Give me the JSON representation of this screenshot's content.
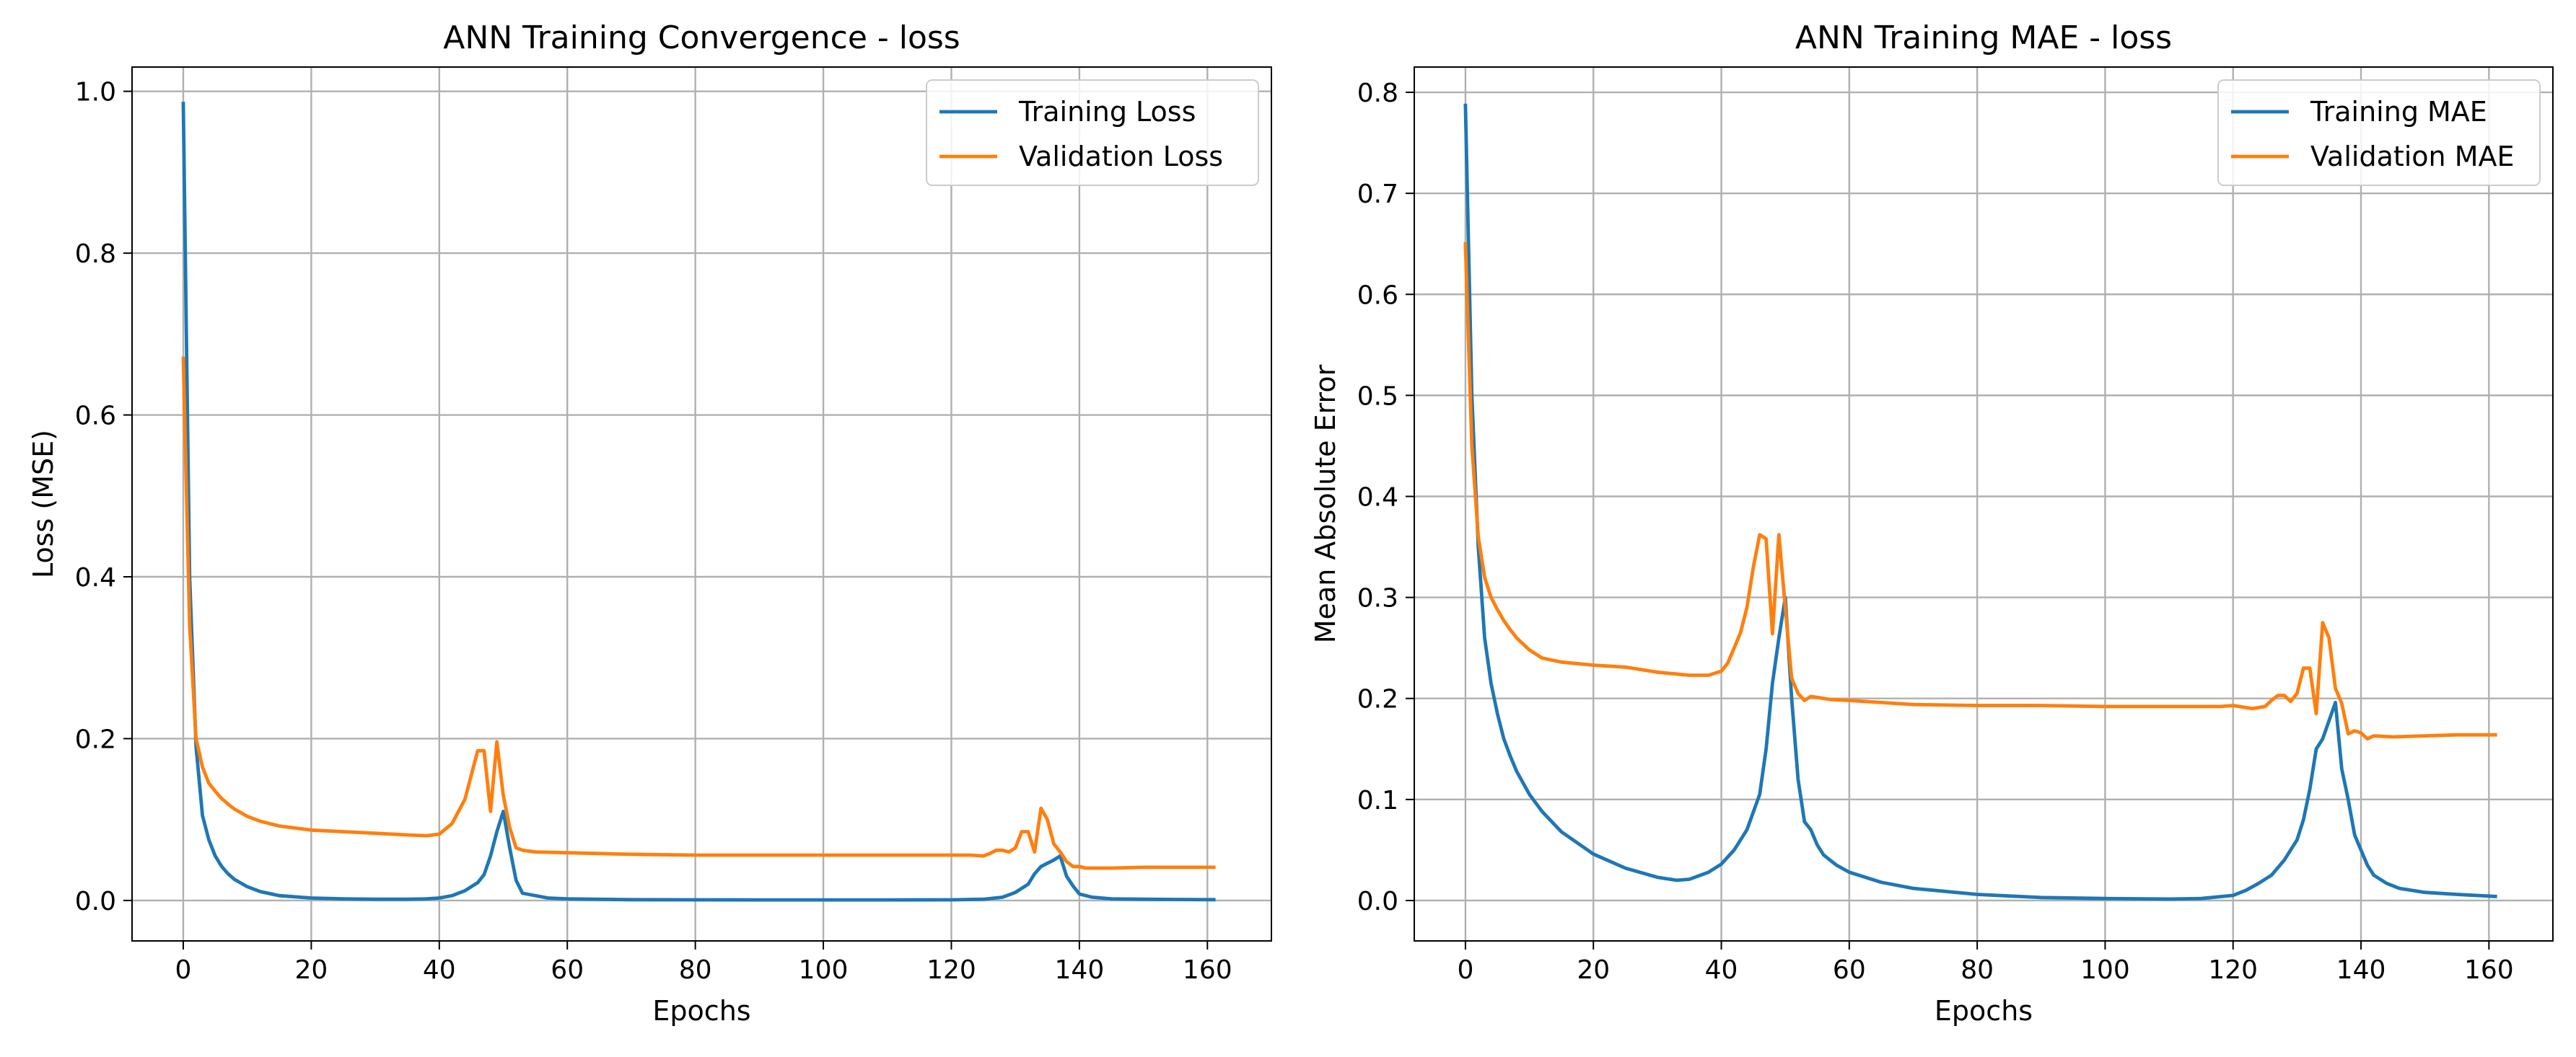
{
  "chart_data": [
    {
      "type": "line",
      "title": "ANN Training Convergence - loss",
      "xlabel": "Epochs",
      "ylabel": "Loss (MSE)",
      "xlim": [
        -8,
        170
      ],
      "ylim": [
        -0.05,
        1.03
      ],
      "xticks": [
        0,
        20,
        40,
        60,
        80,
        100,
        120,
        140,
        160
      ],
      "yticks": [
        0.0,
        0.2,
        0.4,
        0.6,
        0.8,
        1.0
      ],
      "ytick_format": "1",
      "grid": true,
      "legend": "top-right",
      "series": [
        {
          "name": "Training Loss",
          "color": "#1f77b4",
          "points": [
            [
              0,
              0.985
            ],
            [
              1,
              0.4
            ],
            [
              2,
              0.19
            ],
            [
              3,
              0.105
            ],
            [
              4,
              0.075
            ],
            [
              5,
              0.055
            ],
            [
              6,
              0.042
            ],
            [
              7,
              0.033
            ],
            [
              8,
              0.026
            ],
            [
              10,
              0.017
            ],
            [
              12,
              0.011
            ],
            [
              15,
              0.006
            ],
            [
              20,
              0.003
            ],
            [
              25,
              0.002
            ],
            [
              30,
              0.0015
            ],
            [
              35,
              0.0015
            ],
            [
              38,
              0.002
            ],
            [
              40,
              0.003
            ],
            [
              42,
              0.006
            ],
            [
              44,
              0.012
            ],
            [
              46,
              0.022
            ],
            [
              47,
              0.032
            ],
            [
              48,
              0.055
            ],
            [
              49,
              0.085
            ],
            [
              50,
              0.11
            ],
            [
              51,
              0.065
            ],
            [
              52,
              0.025
            ],
            [
              53,
              0.009
            ],
            [
              55,
              0.006
            ],
            [
              57,
              0.003
            ],
            [
              60,
              0.002
            ],
            [
              70,
              0.001
            ],
            [
              80,
              0.0008
            ],
            [
              90,
              0.0007
            ],
            [
              100,
              0.0007
            ],
            [
              110,
              0.0007
            ],
            [
              120,
              0.0008
            ],
            [
              125,
              0.0015
            ],
            [
              128,
              0.004
            ],
            [
              130,
              0.01
            ],
            [
              132,
              0.02
            ],
            [
              133,
              0.033
            ],
            [
              134,
              0.042
            ],
            [
              136,
              0.05
            ],
            [
              137,
              0.055
            ],
            [
              138,
              0.03
            ],
            [
              139,
              0.018
            ],
            [
              140,
              0.008
            ],
            [
              142,
              0.004
            ],
            [
              145,
              0.002
            ],
            [
              150,
              0.0015
            ],
            [
              155,
              0.0012
            ],
            [
              161,
              0.001
            ]
          ]
        },
        {
          "name": "Validation Loss",
          "color": "#ff7f0e",
          "points": [
            [
              0,
              0.67
            ],
            [
              1,
              0.34
            ],
            [
              2,
              0.2
            ],
            [
              3,
              0.165
            ],
            [
              4,
              0.145
            ],
            [
              5,
              0.135
            ],
            [
              6,
              0.126
            ],
            [
              7,
              0.119
            ],
            [
              8,
              0.113
            ],
            [
              10,
              0.104
            ],
            [
              12,
              0.098
            ],
            [
              15,
              0.092
            ],
            [
              20,
              0.087
            ],
            [
              25,
              0.085
            ],
            [
              30,
              0.083
            ],
            [
              35,
              0.081
            ],
            [
              38,
              0.08
            ],
            [
              40,
              0.082
            ],
            [
              42,
              0.095
            ],
            [
              44,
              0.125
            ],
            [
              45,
              0.155
            ],
            [
              46,
              0.185
            ],
            [
              47,
              0.185
            ],
            [
              48,
              0.11
            ],
            [
              49,
              0.196
            ],
            [
              50,
              0.13
            ],
            [
              51,
              0.09
            ],
            [
              52,
              0.065
            ],
            [
              53,
              0.062
            ],
            [
              55,
              0.06
            ],
            [
              60,
              0.059
            ],
            [
              70,
              0.057
            ],
            [
              80,
              0.056
            ],
            [
              90,
              0.056
            ],
            [
              100,
              0.056
            ],
            [
              110,
              0.056
            ],
            [
              120,
              0.056
            ],
            [
              123,
              0.056
            ],
            [
              125,
              0.055
            ],
            [
              126,
              0.058
            ],
            [
              127,
              0.062
            ],
            [
              128,
              0.062
            ],
            [
              129,
              0.06
            ],
            [
              130,
              0.065
            ],
            [
              131,
              0.085
            ],
            [
              132,
              0.085
            ],
            [
              133,
              0.06
            ],
            [
              134,
              0.114
            ],
            [
              135,
              0.1
            ],
            [
              136,
              0.07
            ],
            [
              137,
              0.06
            ],
            [
              138,
              0.048
            ],
            [
              139,
              0.042
            ],
            [
              140,
              0.042
            ],
            [
              141,
              0.04
            ],
            [
              143,
              0.04
            ],
            [
              145,
              0.04
            ],
            [
              150,
              0.041
            ],
            [
              155,
              0.041
            ],
            [
              161,
              0.041
            ]
          ]
        }
      ]
    },
    {
      "type": "line",
      "title": "ANN Training MAE - loss",
      "xlabel": "Epochs",
      "ylabel": "Mean Absolute Error",
      "xlim": [
        -8,
        170
      ],
      "ylim": [
        -0.04,
        0.825
      ],
      "xticks": [
        0,
        20,
        40,
        60,
        80,
        100,
        120,
        140,
        160
      ],
      "yticks": [
        0.0,
        0.1,
        0.2,
        0.3,
        0.4,
        0.5,
        0.6,
        0.7,
        0.8
      ],
      "ytick_format": "1",
      "grid": true,
      "legend": "top-right",
      "series": [
        {
          "name": "Training MAE",
          "color": "#1f77b4",
          "points": [
            [
              0,
              0.787
            ],
            [
              1,
              0.5
            ],
            [
              2,
              0.35
            ],
            [
              3,
              0.26
            ],
            [
              4,
              0.215
            ],
            [
              5,
              0.185
            ],
            [
              6,
              0.16
            ],
            [
              7,
              0.143
            ],
            [
              8,
              0.128
            ],
            [
              10,
              0.105
            ],
            [
              12,
              0.088
            ],
            [
              15,
              0.068
            ],
            [
              20,
              0.046
            ],
            [
              25,
              0.032
            ],
            [
              30,
              0.023
            ],
            [
              33,
              0.02
            ],
            [
              35,
              0.021
            ],
            [
              38,
              0.028
            ],
            [
              40,
              0.036
            ],
            [
              42,
              0.05
            ],
            [
              44,
              0.07
            ],
            [
              46,
              0.105
            ],
            [
              47,
              0.15
            ],
            [
              48,
              0.215
            ],
            [
              49,
              0.26
            ],
            [
              50,
              0.3
            ],
            [
              51,
              0.2
            ],
            [
              52,
              0.12
            ],
            [
              53,
              0.078
            ],
            [
              54,
              0.07
            ],
            [
              55,
              0.055
            ],
            [
              56,
              0.045
            ],
            [
              58,
              0.035
            ],
            [
              60,
              0.028
            ],
            [
              65,
              0.018
            ],
            [
              70,
              0.012
            ],
            [
              80,
              0.006
            ],
            [
              90,
              0.003
            ],
            [
              100,
              0.002
            ],
            [
              110,
              0.0015
            ],
            [
              115,
              0.002
            ],
            [
              120,
              0.005
            ],
            [
              122,
              0.01
            ],
            [
              124,
              0.017
            ],
            [
              126,
              0.025
            ],
            [
              128,
              0.04
            ],
            [
              130,
              0.06
            ],
            [
              131,
              0.08
            ],
            [
              132,
              0.11
            ],
            [
              133,
              0.15
            ],
            [
              134,
              0.16
            ],
            [
              136,
              0.196
            ],
            [
              137,
              0.13
            ],
            [
              138,
              0.1
            ],
            [
              139,
              0.065
            ],
            [
              140,
              0.05
            ],
            [
              141,
              0.035
            ],
            [
              142,
              0.025
            ],
            [
              144,
              0.017
            ],
            [
              146,
              0.012
            ],
            [
              150,
              0.008
            ],
            [
              155,
              0.006
            ],
            [
              161,
              0.004
            ]
          ]
        },
        {
          "name": "Validation MAE",
          "color": "#ff7f0e",
          "points": [
            [
              0,
              0.65
            ],
            [
              1,
              0.45
            ],
            [
              2,
              0.36
            ],
            [
              3,
              0.32
            ],
            [
              4,
              0.3
            ],
            [
              5,
              0.288
            ],
            [
              6,
              0.277
            ],
            [
              7,
              0.268
            ],
            [
              8,
              0.26
            ],
            [
              10,
              0.248
            ],
            [
              12,
              0.24
            ],
            [
              15,
              0.236
            ],
            [
              20,
              0.233
            ],
            [
              25,
              0.231
            ],
            [
              30,
              0.226
            ],
            [
              35,
              0.223
            ],
            [
              38,
              0.223
            ],
            [
              40,
              0.227
            ],
            [
              41,
              0.235
            ],
            [
              42,
              0.25
            ],
            [
              43,
              0.265
            ],
            [
              44,
              0.29
            ],
            [
              45,
              0.33
            ],
            [
              46,
              0.362
            ],
            [
              47,
              0.358
            ],
            [
              48,
              0.264
            ],
            [
              49,
              0.362
            ],
            [
              50,
              0.29
            ],
            [
              51,
              0.22
            ],
            [
              52,
              0.205
            ],
            [
              53,
              0.198
            ],
            [
              54,
              0.202
            ],
            [
              55,
              0.201
            ],
            [
              57,
              0.199
            ],
            [
              60,
              0.198
            ],
            [
              70,
              0.194
            ],
            [
              80,
              0.193
            ],
            [
              90,
              0.193
            ],
            [
              100,
              0.192
            ],
            [
              110,
              0.192
            ],
            [
              118,
              0.192
            ],
            [
              120,
              0.193
            ],
            [
              123,
              0.19
            ],
            [
              125,
              0.192
            ],
            [
              126,
              0.198
            ],
            [
              127,
              0.203
            ],
            [
              128,
              0.203
            ],
            [
              129,
              0.197
            ],
            [
              130,
              0.205
            ],
            [
              131,
              0.23
            ],
            [
              132,
              0.23
            ],
            [
              133,
              0.185
            ],
            [
              134,
              0.275
            ],
            [
              135,
              0.26
            ],
            [
              136,
              0.21
            ],
            [
              137,
              0.195
            ],
            [
              138,
              0.165
            ],
            [
              139,
              0.168
            ],
            [
              140,
              0.166
            ],
            [
              141,
              0.16
            ],
            [
              142,
              0.163
            ],
            [
              145,
              0.162
            ],
            [
              150,
              0.163
            ],
            [
              155,
              0.164
            ],
            [
              161,
              0.164
            ]
          ]
        }
      ]
    }
  ]
}
